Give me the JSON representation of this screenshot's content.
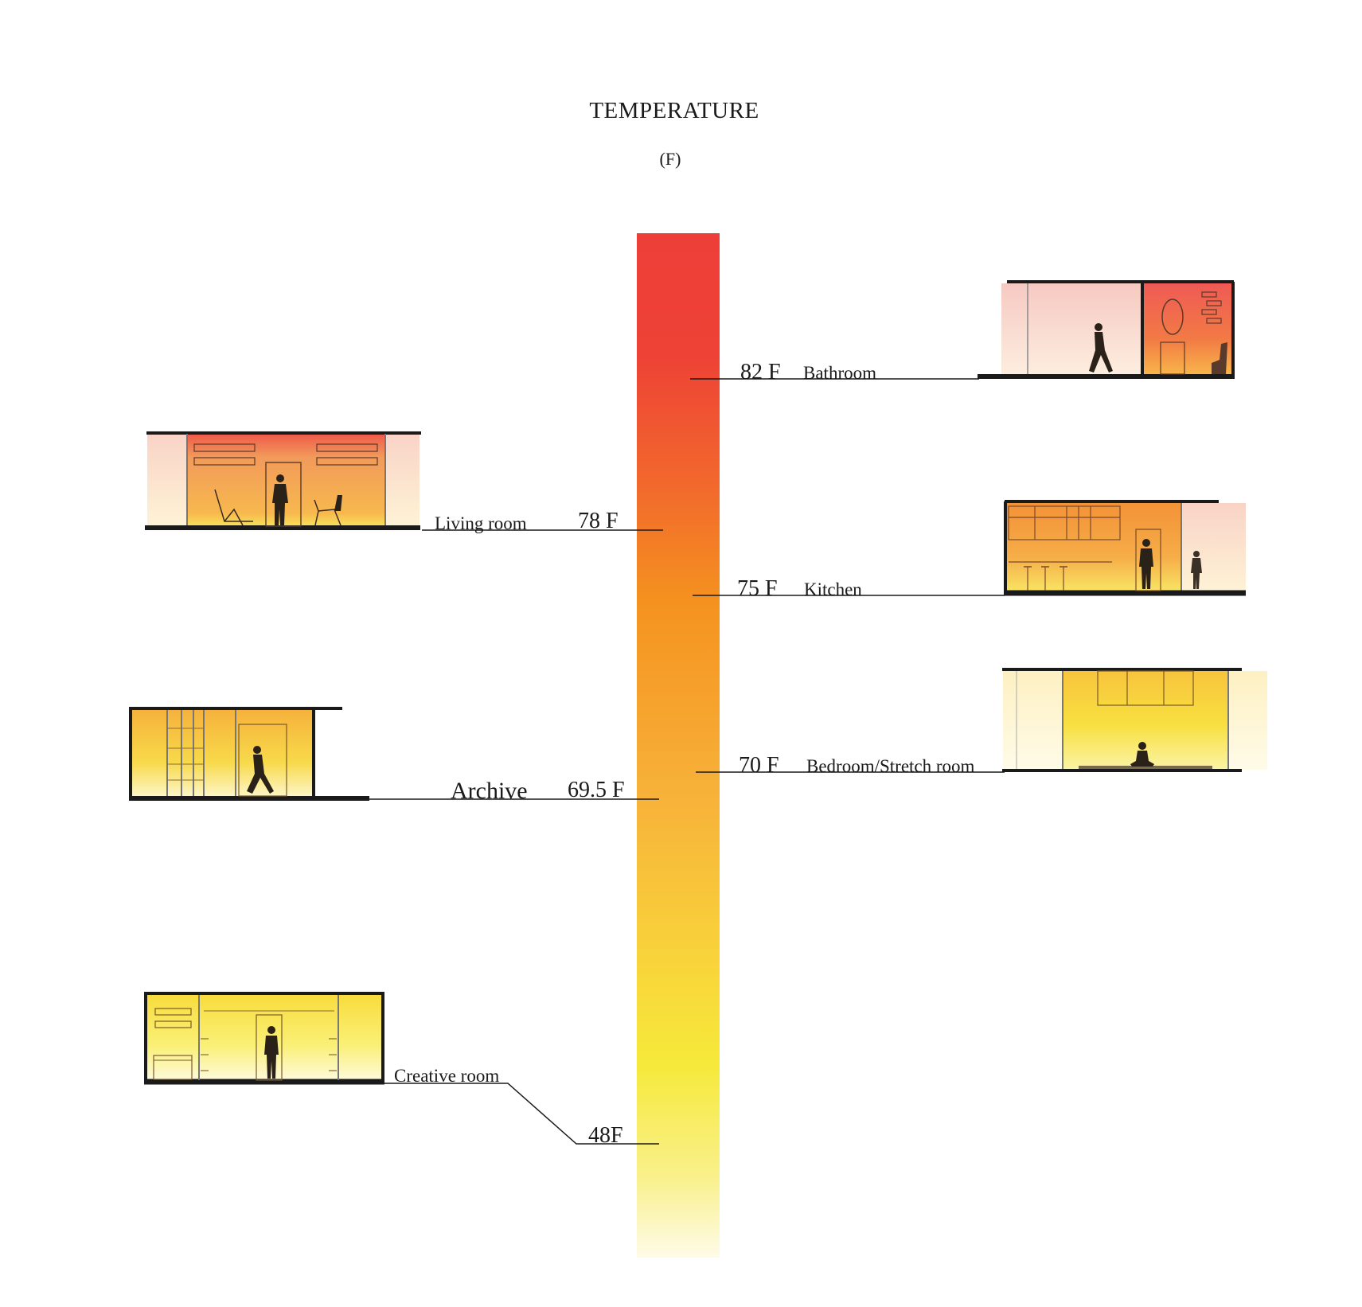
{
  "title": "TEMPERATURE",
  "unit": "(F)",
  "colors": {
    "hot": "#ee3e38",
    "warm": "#f59a24",
    "mild": "#f7c03a",
    "cool": "#f6e93a",
    "coldest": "#fdf7c8",
    "ink": "#1a1a1a",
    "pink_wall": "#f6cdc4",
    "cream_wall": "#fdf3c4"
  },
  "rooms": [
    {
      "id": "bathroom",
      "name": "Bathroom",
      "temp_label": "82 F",
      "temperature_f": 82,
      "side": "right"
    },
    {
      "id": "living",
      "name": "Living room",
      "temp_label": "78 F",
      "temperature_f": 78,
      "side": "left"
    },
    {
      "id": "kitchen",
      "name": "Kitchen",
      "temp_label": "75 F",
      "temperature_f": 75,
      "side": "right"
    },
    {
      "id": "bedroom",
      "name": "Bedroom/Stretch room",
      "temp_label": "70 F",
      "temperature_f": 70,
      "side": "right"
    },
    {
      "id": "archive",
      "name": "Archive",
      "temp_label": "69.5 F",
      "temperature_f": 69.5,
      "side": "left"
    },
    {
      "id": "creative",
      "name": "Creative room",
      "temp_label": "48F",
      "temperature_f": 48,
      "side": "left"
    }
  ]
}
